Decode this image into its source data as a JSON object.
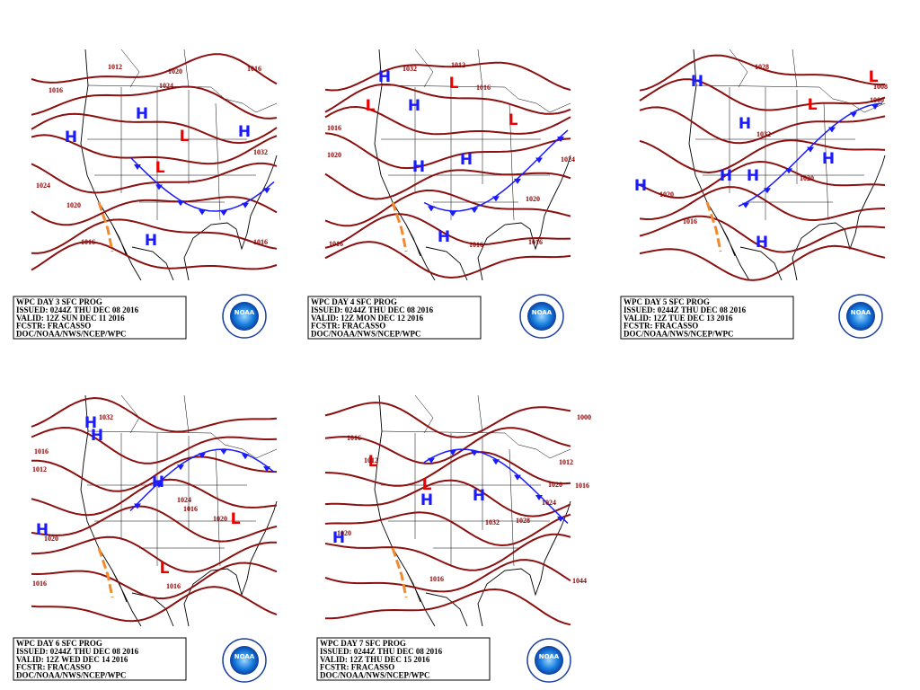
{
  "logo_text": "NOAA",
  "panels": [
    {
      "box": [
        "WPC DAY 3 SFC PROG",
        "ISSUED: 0244Z THU DEC 08 2016",
        "VALID: 12Z SUN DEC 11 2016",
        "FCSTR: FRACASSO",
        "DOC/NOAA/NWS/NCEP/WPC"
      ],
      "labels": [
        {
          "text": "H",
          "color": "#1a1aff"
        },
        {
          "text": "H",
          "color": "#1a1aff"
        },
        {
          "text": "H",
          "color": "#1a1aff"
        },
        {
          "text": "H",
          "color": "#1a1aff"
        },
        {
          "text": "L",
          "color": "#ee0000"
        },
        {
          "text": "L",
          "color": "#ee0000"
        },
        {
          "text": "1016",
          "color": "#8b0000"
        },
        {
          "text": "1024",
          "color": "#8b0000"
        },
        {
          "text": "1020",
          "color": "#8b0000"
        },
        {
          "text": "1016",
          "color": "#8b0000"
        },
        {
          "text": "1016",
          "color": "#8b0000"
        },
        {
          "text": "1032",
          "color": "#8b0000"
        },
        {
          "text": "1020",
          "color": "#8b0000"
        },
        {
          "text": "1024",
          "color": "#8b0000"
        },
        {
          "text": "1016",
          "color": "#8b0000"
        },
        {
          "text": "1012",
          "color": "#8b0000"
        }
      ]
    },
    {
      "box": [
        "WPC DAY 4 SFC PROG",
        "ISSUED: 0244Z THU DEC 08 2016",
        "VALID: 12Z MON DEC 12 2016",
        "FCSTR: FRACASSO",
        "DOC/NOAA/NWS/NCEP/WPC"
      ],
      "labels": [
        {
          "text": "H",
          "color": "#1a1aff"
        },
        {
          "text": "H",
          "color": "#1a1aff"
        },
        {
          "text": "H",
          "color": "#1a1aff"
        },
        {
          "text": "H",
          "color": "#1a1aff"
        },
        {
          "text": "H",
          "color": "#1a1aff"
        },
        {
          "text": "L",
          "color": "#ee0000"
        },
        {
          "text": "L",
          "color": "#ee0000"
        },
        {
          "text": "L",
          "color": "#ee0000"
        },
        {
          "text": "1016",
          "color": "#8b0000"
        },
        {
          "text": "1020",
          "color": "#8b0000"
        },
        {
          "text": "1016",
          "color": "#8b0000"
        },
        {
          "text": "1032",
          "color": "#8b0000"
        },
        {
          "text": "1012",
          "color": "#8b0000"
        },
        {
          "text": "1016",
          "color": "#8b0000"
        },
        {
          "text": "1024",
          "color": "#8b0000"
        },
        {
          "text": "1020",
          "color": "#8b0000"
        },
        {
          "text": "1016",
          "color": "#8b0000"
        },
        {
          "text": "1016",
          "color": "#8b0000"
        }
      ]
    },
    {
      "box": [
        "WPC DAY 5 SFC PROG",
        "ISSUED: 0244Z THU DEC 08 2016",
        "VALID: 12Z TUE DEC 13 2016",
        "FCSTR: FRACASSO",
        "DOC/NOAA/NWS/NCEP/WPC"
      ],
      "labels": [
        {
          "text": "H",
          "color": "#1a1aff"
        },
        {
          "text": "H",
          "color": "#1a1aff"
        },
        {
          "text": "H",
          "color": "#1a1aff"
        },
        {
          "text": "H",
          "color": "#1a1aff"
        },
        {
          "text": "H",
          "color": "#1a1aff"
        },
        {
          "text": "H",
          "color": "#1a1aff"
        },
        {
          "text": "H",
          "color": "#1a1aff"
        },
        {
          "text": "L",
          "color": "#ee0000"
        },
        {
          "text": "L",
          "color": "#ee0000"
        },
        {
          "text": "1016",
          "color": "#8b0000"
        },
        {
          "text": "1020",
          "color": "#8b0000"
        },
        {
          "text": "1032",
          "color": "#8b0000"
        },
        {
          "text": "1020",
          "color": "#8b0000"
        },
        {
          "text": "1008",
          "color": "#8b0000"
        },
        {
          "text": "1000",
          "color": "#8b0000"
        },
        {
          "text": "1028",
          "color": "#8b0000"
        }
      ]
    },
    {
      "box": [
        "WPC DAY 6 SFC PROG",
        "ISSUED: 0244Z THU DEC 08 2016",
        "VALID: 12Z WED DEC 14 2016",
        "FCSTR: FRACASSO",
        "DOC/NOAA/NWS/NCEP/WPC"
      ],
      "labels": [
        {
          "text": "H",
          "color": "#1a1aff"
        },
        {
          "text": "H",
          "color": "#1a1aff"
        },
        {
          "text": "H",
          "color": "#1a1aff"
        },
        {
          "text": "H",
          "color": "#1a1aff"
        },
        {
          "text": "L",
          "color": "#ee0000"
        },
        {
          "text": "L",
          "color": "#ee0000"
        },
        {
          "text": "1016",
          "color": "#8b0000"
        },
        {
          "text": "1012",
          "color": "#8b0000"
        },
        {
          "text": "1020",
          "color": "#8b0000"
        },
        {
          "text": "1016",
          "color": "#8b0000"
        },
        {
          "text": "1016",
          "color": "#8b0000"
        },
        {
          "text": "1032",
          "color": "#8b0000"
        },
        {
          "text": "1024",
          "color": "#8b0000"
        },
        {
          "text": "1016",
          "color": "#8b0000"
        },
        {
          "text": "1020",
          "color": "#8b0000"
        }
      ]
    },
    {
      "box": [
        "WPC DAY 7 SFC PROG",
        "ISSUED: 0244Z THU DEC 08 2016",
        "VALID: 12Z THU DEC 15 2016",
        "FCSTR: FRACASSO",
        "DOC/NOAA/NWS/NCEP/WPC"
      ],
      "labels": [
        {
          "text": "H",
          "color": "#1a1aff"
        },
        {
          "text": "H",
          "color": "#1a1aff"
        },
        {
          "text": "H",
          "color": "#1a1aff"
        },
        {
          "text": "L",
          "color": "#ee0000"
        },
        {
          "text": "L",
          "color": "#ee0000"
        },
        {
          "text": "1016",
          "color": "#8b0000"
        },
        {
          "text": "1020",
          "color": "#8b0000"
        },
        {
          "text": "1016",
          "color": "#8b0000"
        },
        {
          "text": "1012",
          "color": "#8b0000"
        },
        {
          "text": "1016",
          "color": "#8b0000"
        },
        {
          "text": "1020",
          "color": "#8b0000"
        },
        {
          "text": "1024",
          "color": "#8b0000"
        },
        {
          "text": "1028",
          "color": "#8b0000"
        },
        {
          "text": "1032",
          "color": "#8b0000"
        },
        {
          "text": "1012",
          "color": "#8b0000"
        },
        {
          "text": "1000",
          "color": "#8b0000"
        },
        {
          "text": "1044",
          "color": "#8b0000"
        }
      ]
    }
  ]
}
